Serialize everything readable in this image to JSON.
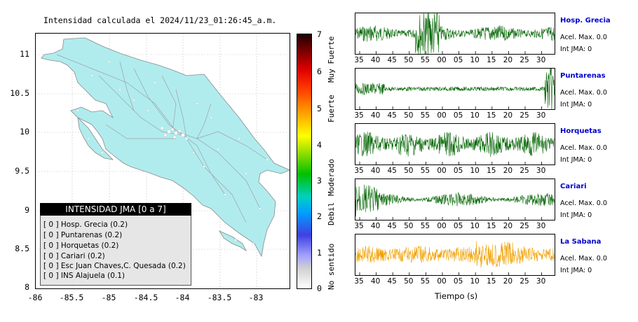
{
  "map": {
    "title": "Intensidad calculada el 2024/11/23_01:26:45_a.m.",
    "y_ticks": [
      "11",
      "10.5",
      "10",
      "9.5",
      "9",
      "8.5",
      "8"
    ],
    "x_ticks": [
      "-86",
      "-85.5",
      "-85",
      "-84.5",
      "-84",
      "-83.5",
      "-83"
    ],
    "land_color": "#b0ecee",
    "legend": {
      "title": "INTENSIDAD JMA [0 a 7]",
      "rows": [
        "[ 0 ]  Hosp. Grecia (0.2)",
        "[ 0 ]  Puntarenas (0.2)",
        "[ 0 ]  Horquetas (0.2)",
        "[ 0 ]  Cariari (0.2)",
        "[ 0 ]  Esc Juan Chaves,C. Quesada (0.2)",
        "[ 0 ]  INS Alajuela (0.1)"
      ]
    }
  },
  "colorbar": {
    "numbers": [
      "7",
      "6",
      "5",
      "4",
      "3",
      "2",
      "1",
      "0"
    ],
    "labels": [
      "Muy Fuerte",
      "Fuerte",
      "Moderado",
      "Debil",
      "No sentido"
    ]
  },
  "waveforms": {
    "x_ticks": [
      "35",
      "40",
      "45",
      "50",
      "55",
      "00",
      "05",
      "10",
      "15",
      "20",
      "25",
      "30"
    ],
    "xlabel": "Tiempo (s)",
    "stations": [
      {
        "name": "Hosp. Grecia",
        "acel": "Acel. Max. 0.0",
        "int": "Int JMA: 0",
        "color": "#006400"
      },
      {
        "name": "Puntarenas",
        "acel": "Acel. Max. 0.0",
        "int": "Int JMA: 0",
        "color": "#006400"
      },
      {
        "name": "Horquetas",
        "acel": "Acel. Max. 0.0",
        "int": "Int JMA: 0",
        "color": "#006400"
      },
      {
        "name": "Cariari",
        "acel": "Acel. Max. 0.0",
        "int": "Int JMA: 0",
        "color": "#006400"
      },
      {
        "name": "La Sabana",
        "acel": "Acel. Max. 0.0",
        "int": "Int JMA: 0",
        "color": "#f0a000"
      }
    ]
  }
}
